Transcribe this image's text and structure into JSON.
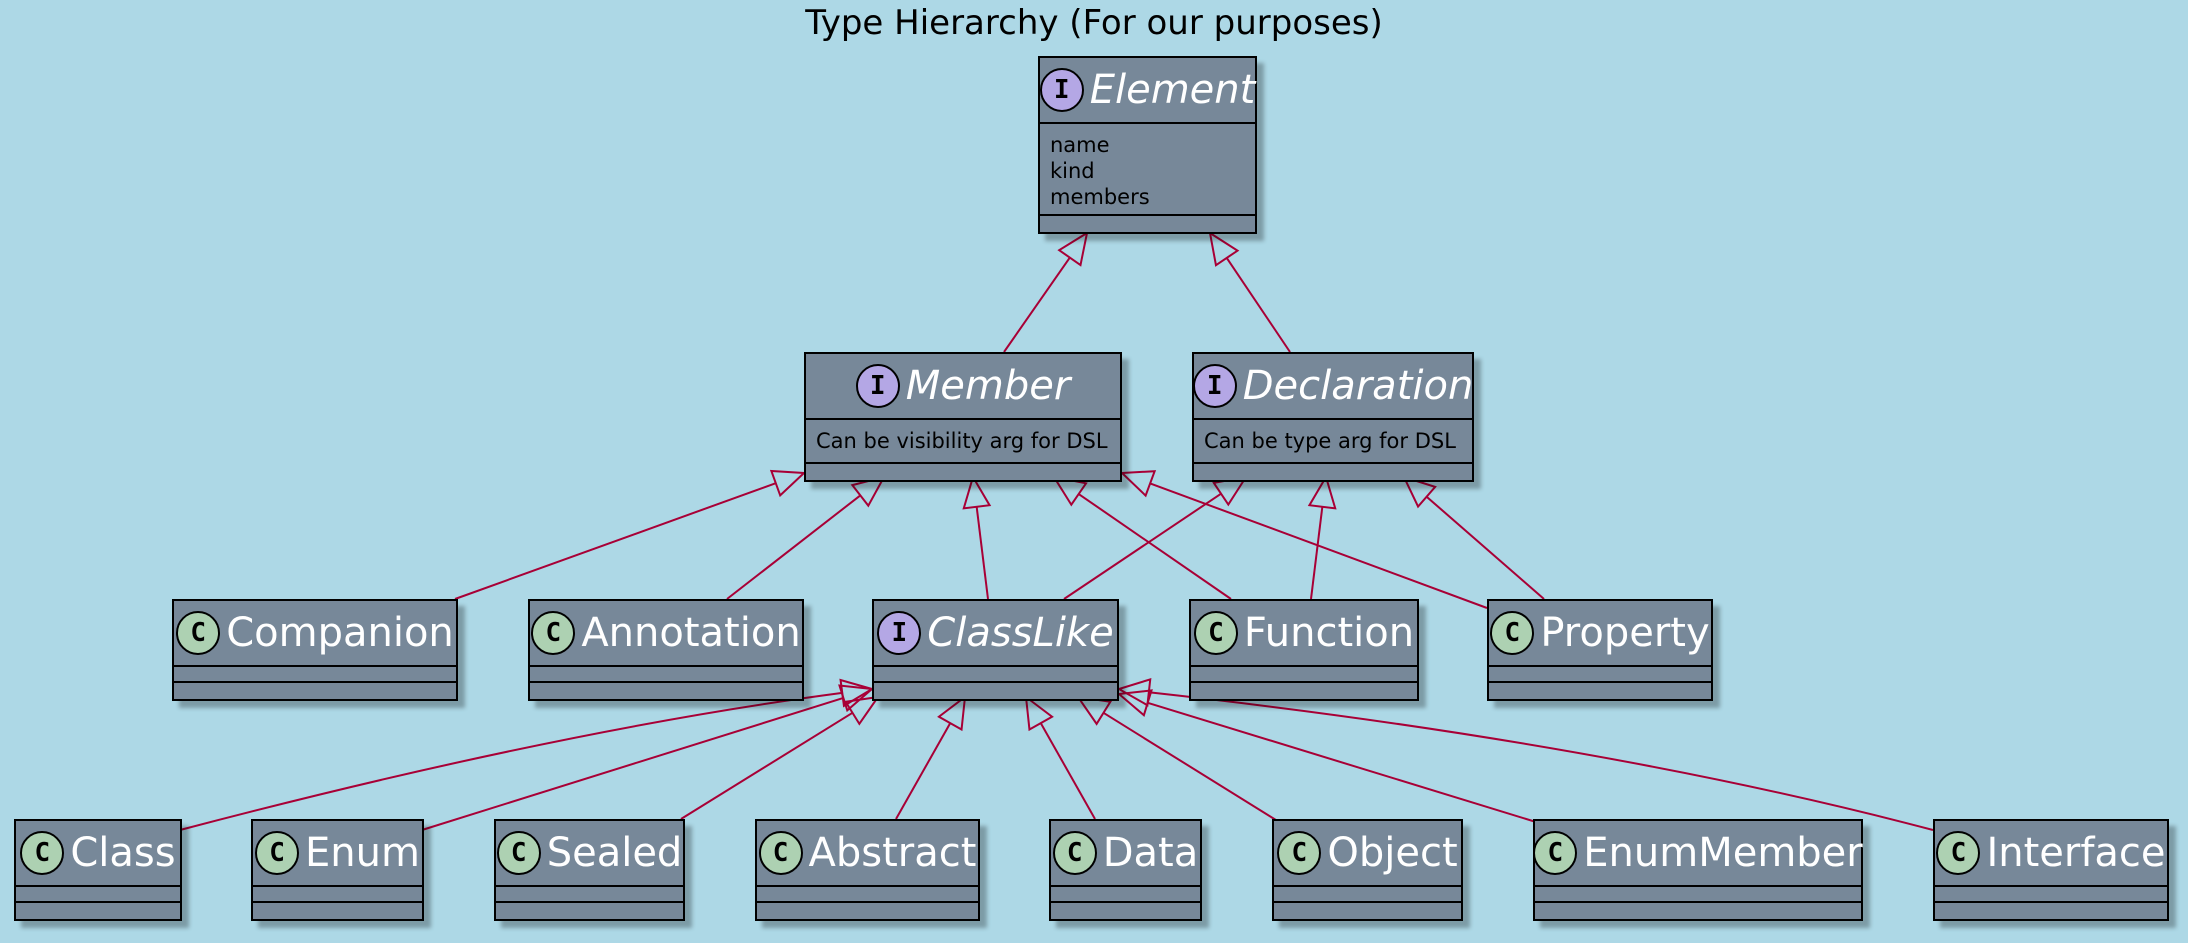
{
  "title": "Type Hierarchy (For our purposes)",
  "colors": {
    "background": "#ADD8E6",
    "node_fill": "#778899",
    "node_border": "#000000",
    "edge": "#A80036",
    "interface_badge": "#B4A7E5",
    "class_badge": "#ADD1B2",
    "name_text": "#FFFFFF"
  },
  "nodes": {
    "element": {
      "kind": "interface",
      "badge": "I",
      "name": "Element",
      "fields": [
        "name",
        "kind",
        "members"
      ]
    },
    "member": {
      "kind": "interface",
      "badge": "I",
      "name": "Member",
      "fields": [
        "Can be visibility arg for DSL"
      ]
    },
    "declaration": {
      "kind": "interface",
      "badge": "I",
      "name": "Declaration",
      "fields": [
        "Can be type arg for DSL"
      ]
    },
    "companion": {
      "kind": "class",
      "badge": "C",
      "name": "Companion",
      "fields": []
    },
    "annotation": {
      "kind": "class",
      "badge": "C",
      "name": "Annotation",
      "fields": []
    },
    "classlike": {
      "kind": "interface",
      "badge": "I",
      "name": "ClassLike",
      "fields": []
    },
    "function": {
      "kind": "class",
      "badge": "C",
      "name": "Function",
      "fields": []
    },
    "property": {
      "kind": "class",
      "badge": "C",
      "name": "Property",
      "fields": []
    },
    "class": {
      "kind": "class",
      "badge": "C",
      "name": "Class",
      "fields": []
    },
    "enum": {
      "kind": "class",
      "badge": "C",
      "name": "Enum",
      "fields": []
    },
    "sealed": {
      "kind": "class",
      "badge": "C",
      "name": "Sealed",
      "fields": []
    },
    "abstract": {
      "kind": "class",
      "badge": "C",
      "name": "Abstract",
      "fields": []
    },
    "data": {
      "kind": "class",
      "badge": "C",
      "name": "Data",
      "fields": []
    },
    "object": {
      "kind": "class",
      "badge": "C",
      "name": "Object",
      "fields": []
    },
    "enummember": {
      "kind": "class",
      "badge": "C",
      "name": "EnumMember",
      "fields": []
    },
    "interface": {
      "kind": "class",
      "badge": "C",
      "name": "Interface",
      "fields": []
    }
  },
  "edges": [
    {
      "from": "member",
      "to": "element"
    },
    {
      "from": "declaration",
      "to": "element"
    },
    {
      "from": "companion",
      "to": "member"
    },
    {
      "from": "annotation",
      "to": "member"
    },
    {
      "from": "classlike",
      "to": "member"
    },
    {
      "from": "function",
      "to": "member"
    },
    {
      "from": "property",
      "to": "member"
    },
    {
      "from": "classlike",
      "to": "declaration"
    },
    {
      "from": "function",
      "to": "declaration"
    },
    {
      "from": "property",
      "to": "declaration"
    },
    {
      "from": "class",
      "to": "classlike"
    },
    {
      "from": "enum",
      "to": "classlike"
    },
    {
      "from": "sealed",
      "to": "classlike"
    },
    {
      "from": "abstract",
      "to": "classlike"
    },
    {
      "from": "data",
      "to": "classlike"
    },
    {
      "from": "object",
      "to": "classlike"
    },
    {
      "from": "enummember",
      "to": "classlike"
    },
    {
      "from": "interface",
      "to": "classlike"
    }
  ]
}
